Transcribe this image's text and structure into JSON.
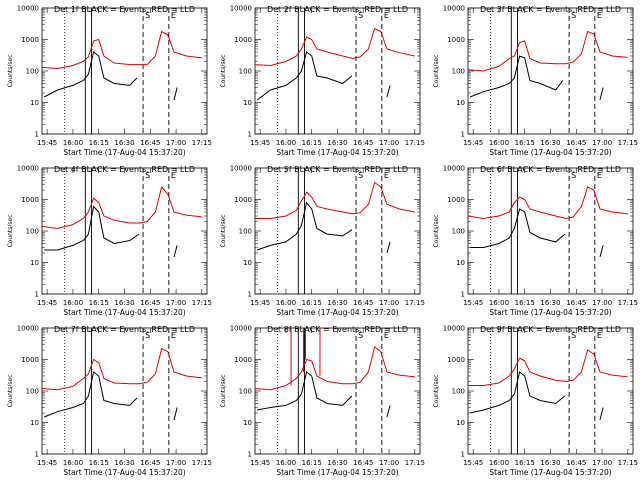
{
  "chart_data": {
    "type": "line",
    "ylabel": "Counts/sec",
    "xlabel": "Start Time (17-Aug-04 15:37:20)",
    "xlim_hours": [
      15.7,
      17.3
    ],
    "x_ticks": [
      {
        "t": 15.75,
        "label": "15:45"
      },
      {
        "t": 16.0,
        "label": "16:00"
      },
      {
        "t": 16.25,
        "label": "16:15"
      },
      {
        "t": 16.5,
        "label": "16:30"
      },
      {
        "t": 16.75,
        "label": "16:45"
      },
      {
        "t": 17.0,
        "label": "17:00"
      },
      {
        "t": 17.25,
        "label": "17:15"
      }
    ],
    "yscale": "log",
    "ylim": [
      1,
      10000
    ],
    "y_ticks": [
      {
        "v": 1,
        "label": "1"
      },
      {
        "v": 10,
        "label": "10"
      },
      {
        "v": 100,
        "label": "100"
      },
      {
        "v": 1000,
        "label": "1000"
      },
      {
        "v": 10000,
        "label": "10000"
      }
    ],
    "series_colors": {
      "events": "#000000",
      "lld": "#e00000"
    },
    "markers": {
      "dotted": 15.92,
      "solid": [
        16.12,
        16.18
      ],
      "dashed": [
        16.68,
        16.93
      ],
      "labels": [
        {
          "t": 16.68,
          "text": "S"
        },
        {
          "t": 16.93,
          "text": "E"
        }
      ]
    },
    "panels": [
      {
        "title": "Det 1f BLACK = Events, RED = LLD",
        "lld": [
          [
            15.7,
            130
          ],
          [
            15.85,
            120
          ],
          [
            16.0,
            150
          ],
          [
            16.1,
            200
          ],
          [
            16.15,
            280
          ],
          [
            16.2,
            900
          ],
          [
            16.25,
            1000
          ],
          [
            16.3,
            300
          ],
          [
            16.4,
            180
          ],
          [
            16.55,
            160
          ],
          [
            16.65,
            160
          ],
          [
            16.72,
            160
          ],
          [
            16.8,
            300
          ],
          [
            16.86,
            1800
          ],
          [
            16.92,
            1400
          ],
          [
            16.98,
            400
          ],
          [
            17.1,
            300
          ],
          [
            17.25,
            260
          ]
        ],
        "events": [
          [
            15.72,
            15
          ],
          [
            15.85,
            25
          ],
          [
            16.0,
            35
          ],
          [
            16.1,
            50
          ],
          [
            16.15,
            80
          ],
          [
            16.2,
            400
          ],
          [
            16.25,
            300
          ],
          [
            16.3,
            60
          ],
          [
            16.4,
            40
          ],
          [
            16.55,
            35
          ],
          [
            16.62,
            60
          ]
        ],
        "events_b": [
          [
            16.98,
            12
          ],
          [
            17.01,
            30
          ]
        ]
      },
      {
        "title": "Det 2f BLACK = Events, RED = LLD",
        "lld": [
          [
            15.7,
            160
          ],
          [
            15.85,
            150
          ],
          [
            16.0,
            200
          ],
          [
            16.1,
            300
          ],
          [
            16.15,
            500
          ],
          [
            16.2,
            1200
          ],
          [
            16.25,
            1000
          ],
          [
            16.3,
            500
          ],
          [
            16.4,
            400
          ],
          [
            16.55,
            300
          ],
          [
            16.65,
            250
          ],
          [
            16.72,
            280
          ],
          [
            16.8,
            500
          ],
          [
            16.86,
            2200
          ],
          [
            16.92,
            1800
          ],
          [
            16.98,
            500
          ],
          [
            17.1,
            380
          ],
          [
            17.25,
            300
          ]
        ],
        "events": [
          [
            15.72,
            12
          ],
          [
            15.85,
            25
          ],
          [
            16.0,
            35
          ],
          [
            16.1,
            60
          ],
          [
            16.15,
            100
          ],
          [
            16.2,
            400
          ],
          [
            16.25,
            300
          ],
          [
            16.3,
            70
          ],
          [
            16.4,
            60
          ],
          [
            16.55,
            40
          ],
          [
            16.64,
            70
          ]
        ],
        "events_b": [
          [
            16.98,
            15
          ],
          [
            17.01,
            35
          ]
        ]
      },
      {
        "title": "Det 3f BLACK = Events, RED = LLD",
        "lld": [
          [
            15.7,
            110
          ],
          [
            15.85,
            100
          ],
          [
            16.0,
            140
          ],
          [
            16.1,
            250
          ],
          [
            16.15,
            300
          ],
          [
            16.2,
            800
          ],
          [
            16.25,
            900
          ],
          [
            16.3,
            250
          ],
          [
            16.4,
            180
          ],
          [
            16.55,
            170
          ],
          [
            16.65,
            170
          ],
          [
            16.72,
            190
          ],
          [
            16.8,
            350
          ],
          [
            16.86,
            1800
          ],
          [
            16.92,
            1500
          ],
          [
            16.98,
            400
          ],
          [
            17.1,
            300
          ],
          [
            17.25,
            270
          ]
        ],
        "events": [
          [
            15.72,
            15
          ],
          [
            15.85,
            22
          ],
          [
            16.0,
            30
          ],
          [
            16.1,
            40
          ],
          [
            16.15,
            60
          ],
          [
            16.2,
            300
          ],
          [
            16.25,
            260
          ],
          [
            16.3,
            50
          ],
          [
            16.4,
            40
          ],
          [
            16.55,
            25
          ],
          [
            16.62,
            50
          ]
        ],
        "events_b": [
          [
            16.98,
            12
          ],
          [
            17.01,
            30
          ]
        ]
      },
      {
        "title": "Det 4f BLACK = Events, RED = LLD",
        "lld": [
          [
            15.7,
            140
          ],
          [
            15.85,
            120
          ],
          [
            16.0,
            160
          ],
          [
            16.1,
            250
          ],
          [
            16.15,
            400
          ],
          [
            16.2,
            1100
          ],
          [
            16.25,
            800
          ],
          [
            16.3,
            300
          ],
          [
            16.4,
            220
          ],
          [
            16.55,
            180
          ],
          [
            16.65,
            180
          ],
          [
            16.72,
            200
          ],
          [
            16.8,
            400
          ],
          [
            16.86,
            2500
          ],
          [
            16.92,
            1500
          ],
          [
            16.98,
            400
          ],
          [
            17.1,
            320
          ],
          [
            17.25,
            280
          ]
        ],
        "events": [
          [
            15.72,
            25
          ],
          [
            15.85,
            25
          ],
          [
            16.0,
            35
          ],
          [
            16.1,
            50
          ],
          [
            16.15,
            80
          ],
          [
            16.2,
            600
          ],
          [
            16.25,
            400
          ],
          [
            16.3,
            60
          ],
          [
            16.4,
            40
          ],
          [
            16.55,
            50
          ],
          [
            16.64,
            80
          ]
        ],
        "events_b": [
          [
            16.98,
            15
          ],
          [
            17.01,
            35
          ]
        ]
      },
      {
        "title": "Det 5f BLACK = Events, RED = LLD",
        "lld": [
          [
            15.7,
            250
          ],
          [
            15.85,
            250
          ],
          [
            16.0,
            300
          ],
          [
            16.1,
            450
          ],
          [
            16.15,
            900
          ],
          [
            16.2,
            1700
          ],
          [
            16.25,
            1200
          ],
          [
            16.3,
            600
          ],
          [
            16.4,
            500
          ],
          [
            16.55,
            400
          ],
          [
            16.65,
            350
          ],
          [
            16.72,
            380
          ],
          [
            16.8,
            700
          ],
          [
            16.86,
            3500
          ],
          [
            16.92,
            2500
          ],
          [
            16.98,
            700
          ],
          [
            17.1,
            500
          ],
          [
            17.25,
            400
          ]
        ],
        "events": [
          [
            15.72,
            25
          ],
          [
            15.85,
            35
          ],
          [
            16.0,
            45
          ],
          [
            16.1,
            80
          ],
          [
            16.15,
            150
          ],
          [
            16.2,
            800
          ],
          [
            16.25,
            500
          ],
          [
            16.3,
            120
          ],
          [
            16.4,
            80
          ],
          [
            16.55,
            70
          ],
          [
            16.64,
            110
          ]
        ],
        "events_b": [
          [
            16.98,
            20
          ],
          [
            17.01,
            45
          ]
        ]
      },
      {
        "title": "Det 6f BLACK = Events, RED = LLD",
        "lld": [
          [
            15.7,
            300
          ],
          [
            15.85,
            250
          ],
          [
            16.0,
            300
          ],
          [
            16.1,
            400
          ],
          [
            16.15,
            800
          ],
          [
            16.2,
            1200
          ],
          [
            16.25,
            1000
          ],
          [
            16.3,
            500
          ],
          [
            16.4,
            400
          ],
          [
            16.55,
            300
          ],
          [
            16.65,
            250
          ],
          [
            16.72,
            280
          ],
          [
            16.8,
            600
          ],
          [
            16.86,
            2500
          ],
          [
            16.92,
            2000
          ],
          [
            16.98,
            500
          ],
          [
            17.1,
            400
          ],
          [
            17.25,
            350
          ]
        ],
        "events": [
          [
            15.72,
            30
          ],
          [
            15.85,
            30
          ],
          [
            16.0,
            40
          ],
          [
            16.1,
            60
          ],
          [
            16.15,
            120
          ],
          [
            16.2,
            500
          ],
          [
            16.25,
            400
          ],
          [
            16.3,
            90
          ],
          [
            16.4,
            60
          ],
          [
            16.55,
            45
          ],
          [
            16.64,
            80
          ]
        ],
        "events_b": [
          [
            16.98,
            15
          ],
          [
            17.01,
            35
          ]
        ]
      },
      {
        "title": "Det 7f BLACK = Events, RED = LLD",
        "lld": [
          [
            15.7,
            120
          ],
          [
            15.85,
            110
          ],
          [
            16.0,
            140
          ],
          [
            16.1,
            250
          ],
          [
            16.15,
            350
          ],
          [
            16.2,
            1000
          ],
          [
            16.25,
            800
          ],
          [
            16.3,
            250
          ],
          [
            16.4,
            180
          ],
          [
            16.55,
            170
          ],
          [
            16.65,
            170
          ],
          [
            16.72,
            190
          ],
          [
            16.8,
            350
          ],
          [
            16.86,
            2200
          ],
          [
            16.92,
            1800
          ],
          [
            16.98,
            400
          ],
          [
            17.1,
            300
          ],
          [
            17.25,
            260
          ]
        ],
        "events": [
          [
            15.72,
            15
          ],
          [
            15.85,
            22
          ],
          [
            16.0,
            30
          ],
          [
            16.1,
            40
          ],
          [
            16.15,
            70
          ],
          [
            16.2,
            400
          ],
          [
            16.25,
            300
          ],
          [
            16.3,
            50
          ],
          [
            16.4,
            40
          ],
          [
            16.55,
            35
          ],
          [
            16.62,
            60
          ]
        ],
        "events_b": [
          [
            16.98,
            12
          ],
          [
            17.01,
            30
          ]
        ]
      },
      {
        "title": "Det 8f BLACK = Events, RED = LLD",
        "lld": [
          [
            15.7,
            120
          ],
          [
            15.85,
            110
          ],
          [
            16.0,
            150
          ],
          [
            16.1,
            250
          ],
          [
            16.15,
            400
          ],
          [
            16.2,
            1000
          ],
          [
            16.25,
            900
          ],
          [
            16.3,
            300
          ],
          [
            16.4,
            200
          ],
          [
            16.55,
            170
          ],
          [
            16.65,
            170
          ],
          [
            16.72,
            190
          ],
          [
            16.8,
            400
          ],
          [
            16.86,
            2500
          ],
          [
            16.92,
            1800
          ],
          [
            16.98,
            400
          ],
          [
            17.1,
            320
          ],
          [
            17.25,
            280
          ]
        ],
        "spikes": [
          [
            16.05,
            10000
          ],
          [
            16.17,
            10000
          ],
          [
            16.19,
            10000
          ],
          [
            16.33,
            10000
          ]
        ],
        "events": [
          [
            15.72,
            25
          ],
          [
            15.85,
            30
          ],
          [
            16.0,
            35
          ],
          [
            16.1,
            50
          ],
          [
            16.15,
            80
          ],
          [
            16.2,
            400
          ],
          [
            16.25,
            300
          ],
          [
            16.3,
            60
          ],
          [
            16.4,
            40
          ],
          [
            16.55,
            35
          ],
          [
            16.64,
            70
          ]
        ],
        "events_b": [
          [
            16.98,
            15
          ],
          [
            17.01,
            35
          ]
        ]
      },
      {
        "title": "Det 9f BLACK = Events, RED = LLD",
        "lld": [
          [
            15.7,
            150
          ],
          [
            15.85,
            150
          ],
          [
            16.0,
            180
          ],
          [
            16.1,
            300
          ],
          [
            16.15,
            500
          ],
          [
            16.2,
            1100
          ],
          [
            16.25,
            900
          ],
          [
            16.3,
            400
          ],
          [
            16.4,
            300
          ],
          [
            16.55,
            220
          ],
          [
            16.65,
            200
          ],
          [
            16.72,
            220
          ],
          [
            16.8,
            400
          ],
          [
            16.86,
            2000
          ],
          [
            16.92,
            1500
          ],
          [
            16.98,
            400
          ],
          [
            17.1,
            320
          ],
          [
            17.25,
            280
          ]
        ],
        "events": [
          [
            15.72,
            20
          ],
          [
            15.85,
            25
          ],
          [
            16.0,
            35
          ],
          [
            16.1,
            50
          ],
          [
            16.15,
            80
          ],
          [
            16.2,
            400
          ],
          [
            16.25,
            300
          ],
          [
            16.3,
            70
          ],
          [
            16.4,
            50
          ],
          [
            16.55,
            40
          ],
          [
            16.64,
            70
          ]
        ],
        "events_b": [
          [
            16.98,
            12
          ],
          [
            17.01,
            30
          ]
        ]
      }
    ]
  }
}
